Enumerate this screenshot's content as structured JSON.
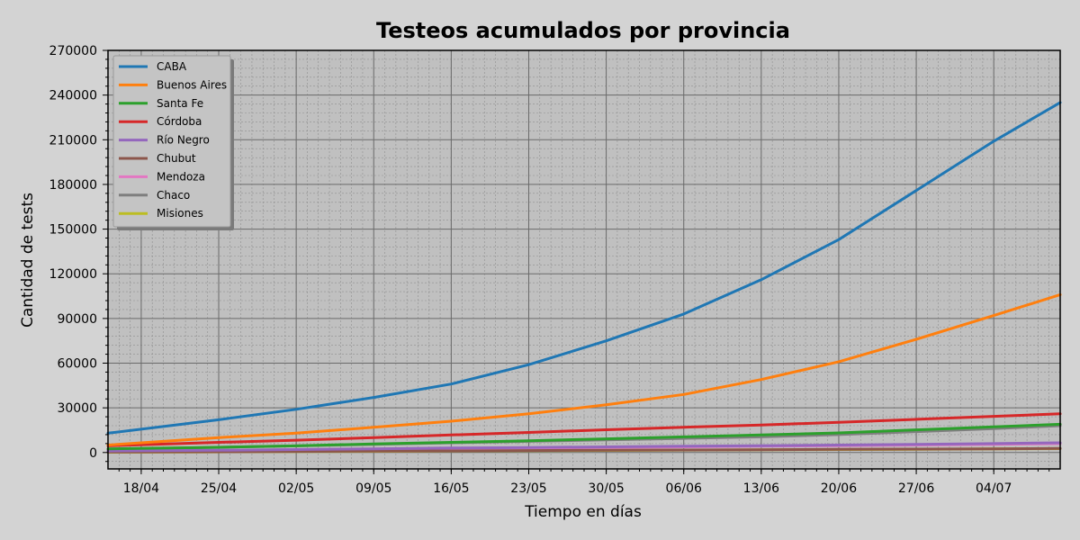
{
  "chart_data": {
    "type": "line",
    "title": "Testeos acumulados por provincia",
    "xlabel": "Tiempo en días",
    "ylabel": "Cantidad de tests",
    "x_tick_labels": [
      "18/04",
      "25/04",
      "02/05",
      "09/05",
      "16/05",
      "23/05",
      "30/05",
      "06/06",
      "13/06",
      "20/06",
      "27/06",
      "04/07"
    ],
    "x_tick_dates": [
      "2020-04-18",
      "2020-04-25",
      "2020-05-02",
      "2020-05-09",
      "2020-05-16",
      "2020-05-23",
      "2020-05-30",
      "2020-06-06",
      "2020-06-13",
      "2020-06-20",
      "2020-06-27",
      "2020-07-04"
    ],
    "xlim": [
      "2020-04-15",
      "2020-07-10"
    ],
    "ylim": [
      -11000,
      270000
    ],
    "y_ticks": [
      0,
      30000,
      60000,
      90000,
      120000,
      150000,
      180000,
      210000,
      240000,
      270000
    ],
    "grid": true,
    "legend_position": "top-left",
    "x": [
      "2020-04-15",
      "2020-04-25",
      "2020-05-02",
      "2020-05-09",
      "2020-05-16",
      "2020-05-23",
      "2020-05-30",
      "2020-06-06",
      "2020-06-13",
      "2020-06-20",
      "2020-06-27",
      "2020-07-04",
      "2020-07-10"
    ],
    "series": [
      {
        "name": "CABA",
        "color": "#1f77b4",
        "values": [
          13000,
          22000,
          29000,
          37000,
          46000,
          59000,
          75000,
          93000,
          116000,
          143000,
          176000,
          209000,
          235000
        ]
      },
      {
        "name": "Buenos Aires",
        "color": "#ff7f0e",
        "values": [
          5000,
          10000,
          13000,
          17000,
          21000,
          26000,
          32000,
          39000,
          49000,
          61000,
          76000,
          92000,
          106000
        ]
      },
      {
        "name": "Santa Fe",
        "color": "#2ca02c",
        "values": [
          2500,
          3500,
          4500,
          5800,
          6800,
          7900,
          9200,
          10500,
          11800,
          13200,
          15200,
          17200,
          19000
        ]
      },
      {
        "name": "Córdoba",
        "color": "#d62728",
        "values": [
          4500,
          6800,
          8300,
          10000,
          11800,
          13500,
          15300,
          17000,
          18500,
          20300,
          22300,
          24300,
          26000
        ]
      },
      {
        "name": "Río Negro",
        "color": "#9467bd",
        "values": [
          1000,
          1500,
          2000,
          2500,
          3000,
          3400,
          3800,
          4200,
          4600,
          5000,
          5500,
          6000,
          6500
        ]
      },
      {
        "name": "Chubut",
        "color": "#8c564b",
        "values": [
          300,
          500,
          700,
          900,
          1100,
          1300,
          1500,
          1700,
          1900,
          2100,
          2300,
          2500,
          2700
        ]
      },
      {
        "name": "Mendoza",
        "color": "#e377c2",
        "values": [
          1000,
          1400,
          1800,
          2200,
          2600,
          3000,
          3400,
          3800,
          4200,
          4600,
          5000,
          5500,
          6000
        ]
      },
      {
        "name": "Chaco",
        "color": "#7f7f7f",
        "values": [
          2000,
          3500,
          4500,
          5500,
          6500,
          7500,
          8500,
          9500,
          10500,
          12000,
          14000,
          16000,
          18000
        ]
      },
      {
        "name": "Misiones",
        "color": "#bcbd22",
        "values": [
          200,
          400,
          600,
          800,
          1000,
          1200,
          1400,
          1600,
          1800,
          2000,
          2200,
          2400,
          2600
        ]
      }
    ]
  }
}
